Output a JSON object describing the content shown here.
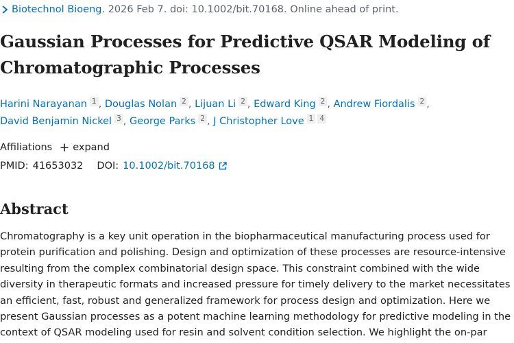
{
  "citation": {
    "journal": "Biotechnol Bioeng.",
    "details": "2026 Feb 7. doi: 10.1002/bit.70168. Online ahead of print."
  },
  "title_lines": [
    "Gaussian Processes for Predictive QSAR Modeling of",
    "Chromatographic Processes"
  ],
  "authors": [
    {
      "name": "Harini Narayanan",
      "sup": [
        "1"
      ]
    },
    {
      "name": "Douglas Nolan",
      "sup": [
        "2"
      ]
    },
    {
      "name": "Lijuan Li",
      "sup": [
        "2"
      ]
    },
    {
      "name": "Edward King",
      "sup": [
        "2"
      ]
    },
    {
      "name": "Andrew Fiordalis",
      "sup": [
        "2"
      ]
    },
    {
      "name": "David Benjamin Nickel",
      "sup": [
        "3"
      ]
    },
    {
      "name": "George Parks",
      "sup": [
        "2"
      ]
    },
    {
      "name": "J Christopher Love",
      "sup": [
        "1",
        "4"
      ]
    }
  ],
  "affiliations": {
    "label": "Affiliations",
    "expand_label": "expand"
  },
  "identifiers": {
    "pmid_label": "PMID:",
    "pmid": "41653032",
    "doi_label": "DOI:",
    "doi": "10.1002/bit.70168"
  },
  "abstract": {
    "heading": "Abstract",
    "lines": [
      "Chromatography is a key unit operation in the biopharmaceutical manufacturing process used for",
      "protein purification and polishing. Design and optimization of these processes are resource-intensive",
      "resulting from the complex combinatorial design space. This constraint combined with the wide",
      "diversity in therapeutic formats and increased pressure for timely delivery to the market necessitates",
      "an efficient, fast, robust and generalized framework for process design and optimization. Here we",
      "present Gaussian processes as a potent machine learning methodology for predictive modeling in the",
      "context of QSAR modeling used for resin and solvent condition selection. We highlight the on-par"
    ]
  },
  "colors": {
    "link": "#0071bc",
    "muted": "#5b616b",
    "text": "#212121"
  },
  "icons": {
    "journal_chevron": "chevron-right-icon",
    "expand": "plus-icon",
    "doi_external": "external-link-icon"
  }
}
